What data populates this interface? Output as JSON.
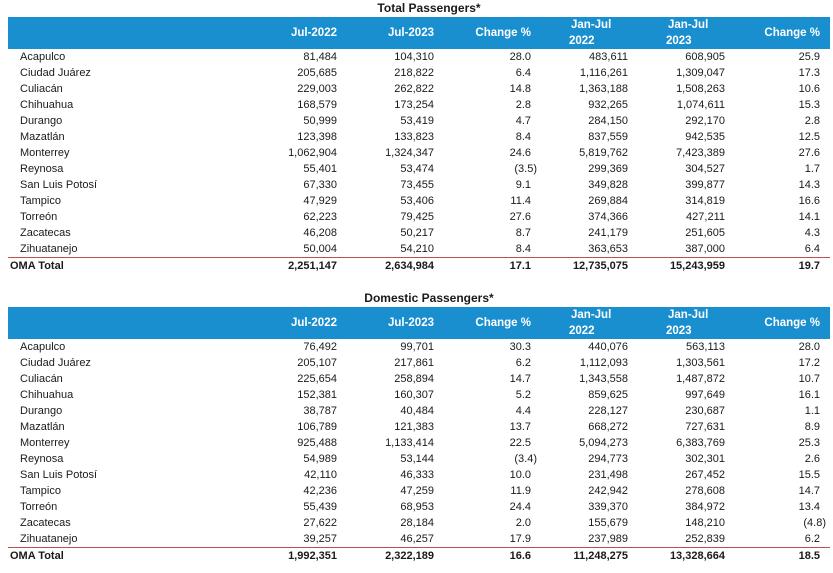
{
  "columns": {
    "name": "",
    "jul_2022": "Jul-2022",
    "jul_2023": "Jul-2023",
    "change_1": "Change %",
    "jan_jul_2022": [
      "Jan-Jul",
      "2022"
    ],
    "jan_jul_2023": [
      "Jan-Jul",
      "2023"
    ],
    "change_2": "Change %"
  },
  "tables": [
    {
      "title": "Total Passengers*",
      "rows": [
        [
          "Acapulco",
          "81,484",
          "104,310",
          "28.0",
          "483,611",
          "608,905",
          "25.9"
        ],
        [
          "Ciudad Juárez",
          "205,685",
          "218,822",
          "6.4",
          "1,116,261",
          "1,309,047",
          "17.3"
        ],
        [
          "Culiacán",
          "229,003",
          "262,822",
          "14.8",
          "1,363,188",
          "1,508,263",
          "10.6"
        ],
        [
          "Chihuahua",
          "168,579",
          "173,254",
          "2.8",
          "932,265",
          "1,074,611",
          "15.3"
        ],
        [
          "Durango",
          "50,999",
          "53,419",
          "4.7",
          "284,150",
          "292,170",
          "2.8"
        ],
        [
          "Mazatlán",
          "123,398",
          "133,823",
          "8.4",
          "837,559",
          "942,535",
          "12.5"
        ],
        [
          "Monterrey",
          "1,062,904",
          "1,324,347",
          "24.6",
          "5,819,762",
          "7,423,389",
          "27.6"
        ],
        [
          "Reynosa",
          "55,401",
          "53,474",
          "(3.5)",
          "299,369",
          "304,527",
          "1.7"
        ],
        [
          "San Luis Potosí",
          "67,330",
          "73,455",
          "9.1",
          "349,828",
          "399,877",
          "14.3"
        ],
        [
          "Tampico",
          "47,929",
          "53,406",
          "11.4",
          "269,884",
          "314,819",
          "16.6"
        ],
        [
          "Torreón",
          "62,223",
          "79,425",
          "27.6",
          "374,366",
          "427,211",
          "14.1"
        ],
        [
          "Zacatecas",
          "46,208",
          "50,217",
          "8.7",
          "241,179",
          "251,605",
          "4.3"
        ],
        [
          "Zihuatanejo",
          "50,004",
          "54,210",
          "8.4",
          "363,653",
          "387,000",
          "6.4"
        ]
      ],
      "total": [
        "OMA Total",
        "2,251,147",
        "2,634,984",
        "17.1",
        "12,735,075",
        "15,243,959",
        "19.7"
      ]
    },
    {
      "title": "Domestic Passengers*",
      "rows": [
        [
          "Acapulco",
          "76,492",
          "99,701",
          "30.3",
          "440,076",
          "563,113",
          "28.0"
        ],
        [
          "Ciudad Juárez",
          "205,107",
          "217,861",
          "6.2",
          "1,112,093",
          "1,303,561",
          "17.2"
        ],
        [
          "Culiacán",
          "225,654",
          "258,894",
          "14.7",
          "1,343,558",
          "1,487,872",
          "10.7"
        ],
        [
          "Chihuahua",
          "152,381",
          "160,307",
          "5.2",
          "859,625",
          "997,649",
          "16.1"
        ],
        [
          "Durango",
          "38,787",
          "40,484",
          "4.4",
          "228,127",
          "230,687",
          "1.1"
        ],
        [
          "Mazatlán",
          "106,789",
          "121,383",
          "13.7",
          "668,272",
          "727,631",
          "8.9"
        ],
        [
          "Monterrey",
          "925,488",
          "1,133,414",
          "22.5",
          "5,094,273",
          "6,383,769",
          "25.3"
        ],
        [
          "Reynosa",
          "54,989",
          "53,144",
          "(3.4)",
          "294,773",
          "302,301",
          "2.6"
        ],
        [
          "San Luis Potosí",
          "42,110",
          "46,333",
          "10.0",
          "231,498",
          "267,452",
          "15.5"
        ],
        [
          "Tampico",
          "42,236",
          "47,259",
          "11.9",
          "242,942",
          "278,608",
          "14.7"
        ],
        [
          "Torreón",
          "55,439",
          "68,953",
          "24.4",
          "339,370",
          "384,972",
          "13.4"
        ],
        [
          "Zacatecas",
          "27,622",
          "28,184",
          "2.0",
          "155,679",
          "148,210",
          "(4.8)"
        ],
        [
          "Zihuatanejo",
          "39,257",
          "46,257",
          "17.9",
          "237,989",
          "252,839",
          "6.2"
        ]
      ],
      "total": [
        "OMA Total",
        "1,992,351",
        "2,322,189",
        "16.6",
        "11,248,275",
        "13,328,664",
        "18.5"
      ]
    }
  ]
}
